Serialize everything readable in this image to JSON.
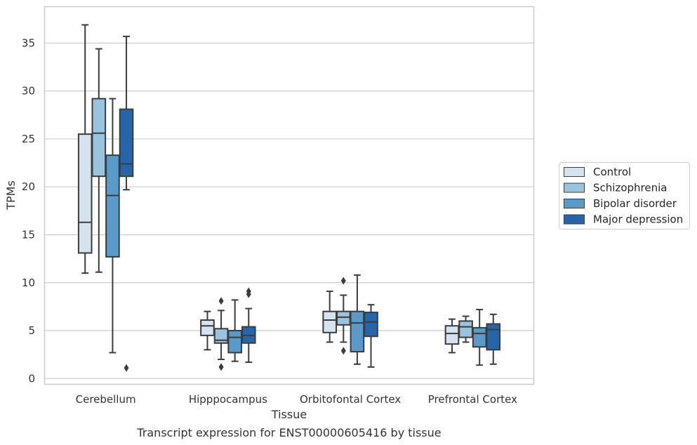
{
  "chart_data": {
    "type": "box",
    "xlabel": "Tissue",
    "ylabel": "TPMs",
    "caption": "Transcript expression for ENST00000605416 by tissue",
    "ylim": [
      -0.6,
      38.8
    ],
    "yticks": [
      0,
      5,
      10,
      15,
      20,
      25,
      30,
      35
    ],
    "grid": "horizontal",
    "legend_position": "right",
    "categories": [
      "Cerebellum",
      "Hipppocampus",
      "Orbitofontal Cortex",
      "Prefrontal Cortex"
    ],
    "series": [
      {
        "name": "Control",
        "color": "#d5e3f0",
        "boxes": [
          {
            "whislo": 11.0,
            "q1": 13.1,
            "med": 16.3,
            "q3": 25.5,
            "whishi": 36.9,
            "fliers": []
          },
          {
            "whislo": 3.0,
            "q1": 4.5,
            "med": 5.5,
            "q3": 6.1,
            "whishi": 7.0,
            "fliers": []
          },
          {
            "whislo": 3.8,
            "q1": 4.8,
            "med": 6.1,
            "q3": 7.0,
            "whishi": 9.1,
            "fliers": []
          },
          {
            "whislo": 2.7,
            "q1": 3.6,
            "med": 4.7,
            "q3": 5.5,
            "whishi": 6.2,
            "fliers": []
          }
        ]
      },
      {
        "name": "Schizophrenia",
        "color": "#9ac3de",
        "boxes": [
          {
            "whislo": 11.1,
            "q1": 21.1,
            "med": 25.6,
            "q3": 29.2,
            "whishi": 34.4,
            "fliers": []
          },
          {
            "whislo": 2.0,
            "q1": 3.7,
            "med": 4.0,
            "q3": 5.2,
            "whishi": 7.1,
            "fliers": [
              1.2,
              8.1
            ]
          },
          {
            "whislo": 3.8,
            "q1": 5.6,
            "med": 6.4,
            "q3": 7.0,
            "whishi": 8.7,
            "fliers": [
              2.9,
              10.2
            ]
          },
          {
            "whislo": 3.8,
            "q1": 4.3,
            "med": 5.4,
            "q3": 6.0,
            "whishi": 6.5,
            "fliers": []
          }
        ]
      },
      {
        "name": "Bipolar disorder",
        "color": "#5a9ac8",
        "boxes": [
          {
            "whislo": 2.7,
            "q1": 12.7,
            "med": 19.1,
            "q3": 23.3,
            "whishi": 29.2,
            "fliers": []
          },
          {
            "whislo": 1.8,
            "q1": 2.7,
            "med": 4.3,
            "q3": 5.0,
            "whishi": 8.2,
            "fliers": []
          },
          {
            "whislo": 1.5,
            "q1": 2.8,
            "med": 5.8,
            "q3": 7.0,
            "whishi": 10.8,
            "fliers": []
          },
          {
            "whislo": 1.4,
            "q1": 3.3,
            "med": 4.7,
            "q3": 5.3,
            "whishi": 7.2,
            "fliers": []
          }
        ]
      },
      {
        "name": "Major depression",
        "color": "#2565a8",
        "boxes": [
          {
            "whislo": 19.7,
            "q1": 21.1,
            "med": 22.4,
            "q3": 28.1,
            "whishi": 35.7,
            "fliers": [
              1.1
            ]
          },
          {
            "whislo": 1.7,
            "q1": 3.7,
            "med": 4.5,
            "q3": 5.4,
            "whishi": 7.3,
            "fliers": [
              8.8,
              9.1
            ]
          },
          {
            "whislo": 1.2,
            "q1": 4.4,
            "med": 5.9,
            "q3": 6.9,
            "whishi": 7.7,
            "fliers": []
          },
          {
            "whislo": 1.5,
            "q1": 3.0,
            "med": 5.1,
            "q3": 5.7,
            "whishi": 6.7,
            "fliers": []
          }
        ]
      }
    ]
  }
}
